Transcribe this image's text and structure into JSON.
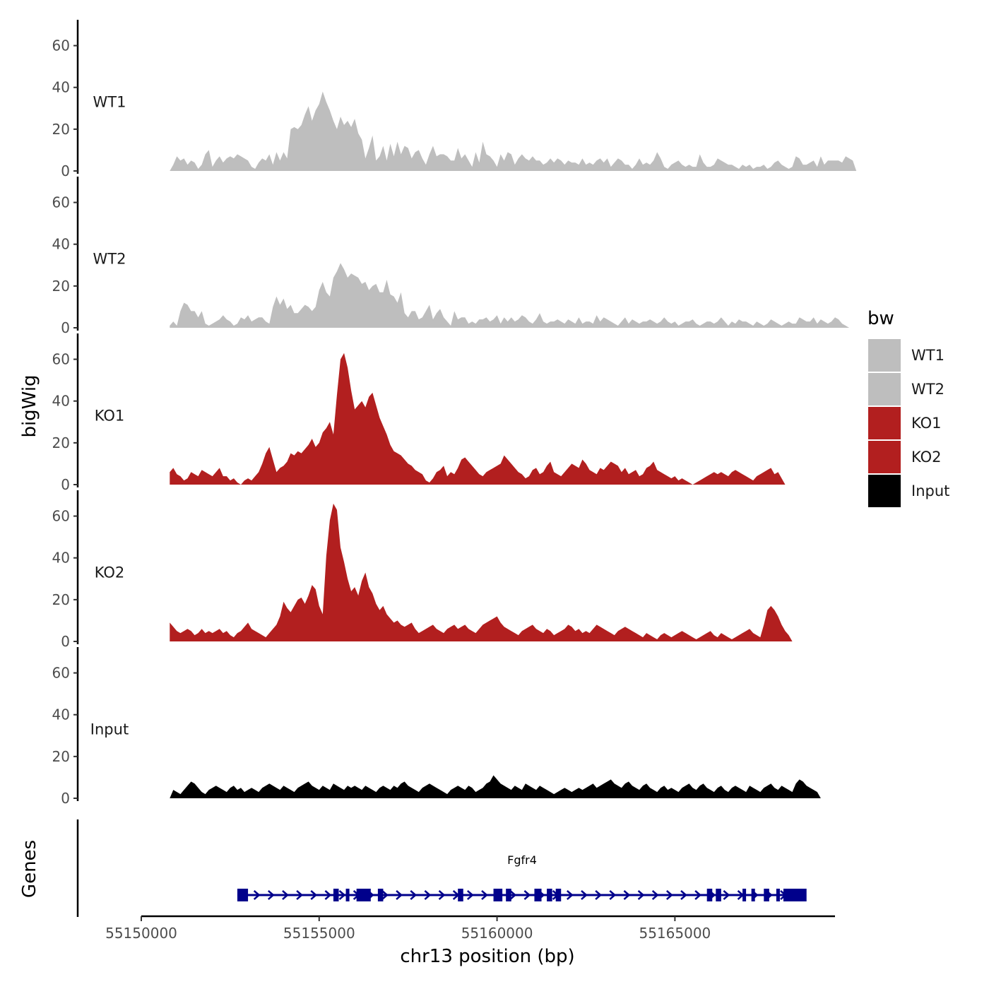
{
  "chart_data": {
    "type": "area",
    "title": "",
    "xlabel": "chr13 position (bp)",
    "ylabel": "bigWig",
    "genes_label": "Genes",
    "xlim": [
      55150000,
      55169500
    ],
    "ylim": [
      0,
      70
    ],
    "x_ticks": [
      55150000,
      55155000,
      55160000,
      55165000
    ],
    "x_tick_labels": [
      "55150000",
      "55155000",
      "55160000",
      "55165000"
    ],
    "y_ticks": [
      0,
      20,
      40,
      60
    ],
    "y_tick_labels": [
      "0",
      "20",
      "40",
      "60"
    ],
    "x_start": 55150800,
    "x_step": 100,
    "legend": {
      "title": "bw",
      "entries": [
        {
          "name": "WT1",
          "color": "#bebebe"
        },
        {
          "name": "WT2",
          "color": "#bebebe"
        },
        {
          "name": "KO1",
          "color": "#b21f1f"
        },
        {
          "name": "KO2",
          "color": "#b21f1f"
        },
        {
          "name": "Input",
          "color": "#000000"
        }
      ]
    },
    "series": [
      {
        "name": "WT1",
        "color": "#bebebe",
        "values": [
          0,
          3,
          7,
          5,
          6,
          3,
          5,
          4,
          1,
          3,
          8,
          10,
          2,
          5,
          7,
          4,
          6,
          7,
          6,
          8,
          7,
          6,
          5,
          2,
          1,
          4,
          6,
          5,
          8,
          3,
          9,
          5,
          9,
          6,
          20,
          21,
          20,
          22,
          27,
          31,
          24,
          29,
          32,
          38,
          33,
          29,
          24,
          20,
          26,
          22,
          24,
          21,
          25,
          18,
          15,
          6,
          11,
          17,
          5,
          7,
          12,
          5,
          13,
          7,
          14,
          8,
          12,
          11,
          6,
          9,
          10,
          6,
          3,
          8,
          12,
          7,
          8,
          8,
          7,
          5,
          5,
          11,
          6,
          8,
          5,
          2,
          9,
          4,
          14,
          8,
          7,
          5,
          2,
          8,
          5,
          9,
          8,
          3,
          6,
          8,
          6,
          5,
          7,
          5,
          5,
          3,
          4,
          6,
          4,
          6,
          5,
          3,
          5,
          4,
          4,
          3,
          6,
          3,
          4,
          3,
          5,
          6,
          4,
          6,
          2,
          4,
          6,
          5,
          3,
          3,
          1,
          3,
          6,
          3,
          4,
          3,
          5,
          9,
          6,
          2,
          1,
          3,
          4,
          5,
          3,
          2,
          3,
          2,
          2,
          8,
          4,
          2,
          2,
          3,
          6,
          5,
          4,
          3,
          3,
          2,
          1,
          3,
          2,
          3,
          1,
          2,
          2,
          3,
          1,
          2,
          4,
          5,
          3,
          2,
          1,
          2,
          7,
          6,
          3,
          3,
          4,
          5,
          2,
          7,
          3,
          5,
          5,
          5,
          5,
          4,
          7,
          6,
          5,
          0
        ]
      },
      {
        "name": "WT2",
        "color": "#bebebe",
        "values": [
          1,
          3,
          1,
          8,
          12,
          11,
          8,
          8,
          5,
          8,
          2,
          1,
          2,
          3,
          4,
          6,
          4,
          3,
          1,
          2,
          5,
          4,
          6,
          3,
          4,
          5,
          5,
          3,
          2,
          10,
          15,
          11,
          14,
          9,
          11,
          7,
          7,
          9,
          11,
          10,
          8,
          10,
          18,
          22,
          17,
          15,
          24,
          27,
          31,
          28,
          24,
          26,
          25,
          24,
          21,
          22,
          18,
          20,
          21,
          17,
          17,
          23,
          16,
          15,
          12,
          17,
          7,
          5,
          8,
          8,
          4,
          5,
          8,
          11,
          4,
          7,
          9,
          5,
          3,
          1,
          8,
          4,
          5,
          5,
          2,
          3,
          2,
          4,
          4,
          5,
          3,
          4,
          6,
          2,
          5,
          3,
          5,
          3,
          4,
          6,
          5,
          3,
          2,
          4,
          7,
          3,
          2,
          3,
          3,
          4,
          3,
          2,
          4,
          3,
          2,
          5,
          2,
          3,
          3,
          2,
          6,
          3,
          5,
          4,
          3,
          2,
          1,
          3,
          5,
          2,
          4,
          3,
          2,
          3,
          3,
          4,
          3,
          2,
          3,
          5,
          3,
          2,
          3,
          1,
          2,
          3,
          3,
          4,
          2,
          1,
          2,
          3,
          3,
          2,
          3,
          5,
          3,
          1,
          3,
          2,
          4,
          3,
          3,
          2,
          1,
          3,
          2,
          1,
          2,
          4,
          3,
          2,
          1,
          2,
          3,
          2,
          2,
          5,
          4,
          3,
          3,
          5,
          2,
          4,
          3,
          2,
          3,
          5,
          4,
          2,
          1,
          0
        ]
      },
      {
        "name": "KO1",
        "color": "#b21f1f",
        "values": [
          6,
          8,
          5,
          4,
          2,
          3,
          6,
          5,
          4,
          7,
          6,
          5,
          4,
          6,
          8,
          4,
          4,
          2,
          3,
          1,
          0,
          2,
          3,
          2,
          4,
          6,
          10,
          15,
          18,
          12,
          6,
          8,
          9,
          11,
          15,
          14,
          16,
          15,
          17,
          19,
          22,
          18,
          20,
          25,
          27,
          30,
          24,
          43,
          60,
          63,
          56,
          45,
          36,
          38,
          40,
          37,
          42,
          44,
          38,
          32,
          28,
          24,
          19,
          16,
          15,
          14,
          12,
          10,
          9,
          7,
          6,
          5,
          2,
          1,
          3,
          6,
          7,
          9,
          4,
          6,
          5,
          8,
          12,
          13,
          11,
          9,
          7,
          5,
          4,
          6,
          7,
          8,
          9,
          10,
          14,
          12,
          10,
          8,
          6,
          5,
          3,
          4,
          7,
          8,
          5,
          6,
          9,
          11,
          6,
          5,
          4,
          6,
          8,
          10,
          9,
          8,
          12,
          10,
          7,
          6,
          5,
          8,
          7,
          9,
          11,
          10,
          9,
          6,
          8,
          5,
          6,
          7,
          4,
          5,
          8,
          9,
          11,
          7,
          6,
          5,
          4,
          3,
          4,
          2,
          3,
          2,
          1,
          0,
          1,
          2,
          3,
          4,
          5,
          6,
          5,
          6,
          5,
          4,
          6,
          7,
          6,
          5,
          4,
          3,
          2,
          4,
          5,
          6,
          7,
          8,
          5,
          6,
          3,
          0
        ]
      },
      {
        "name": "KO2",
        "color": "#b21f1f",
        "values": [
          9,
          7,
          5,
          4,
          5,
          6,
          5,
          3,
          4,
          6,
          4,
          5,
          4,
          5,
          6,
          4,
          5,
          3,
          2,
          4,
          5,
          7,
          9,
          6,
          5,
          4,
          3,
          2,
          4,
          6,
          8,
          12,
          19,
          16,
          14,
          17,
          20,
          21,
          18,
          22,
          27,
          25,
          17,
          13,
          41,
          58,
          66,
          63,
          45,
          38,
          30,
          24,
          26,
          22,
          29,
          33,
          26,
          23,
          18,
          15,
          17,
          13,
          11,
          9,
          10,
          8,
          7,
          8,
          9,
          6,
          4,
          5,
          6,
          7,
          8,
          6,
          5,
          4,
          6,
          7,
          8,
          6,
          7,
          8,
          6,
          5,
          4,
          6,
          8,
          9,
          10,
          11,
          12,
          9,
          7,
          6,
          5,
          4,
          3,
          5,
          6,
          7,
          8,
          6,
          5,
          4,
          6,
          5,
          3,
          4,
          5,
          6,
          8,
          7,
          5,
          6,
          4,
          5,
          4,
          6,
          8,
          7,
          6,
          5,
          4,
          3,
          5,
          6,
          7,
          6,
          5,
          4,
          3,
          2,
          4,
          3,
          2,
          1,
          3,
          4,
          3,
          2,
          3,
          4,
          5,
          4,
          3,
          2,
          1,
          2,
          3,
          4,
          5,
          3,
          2,
          4,
          3,
          2,
          1,
          2,
          3,
          4,
          5,
          6,
          4,
          3,
          2,
          8,
          15,
          17,
          15,
          12,
          8,
          5,
          3,
          0
        ]
      },
      {
        "name": "Input",
        "color": "#000000",
        "values": [
          0,
          4,
          3,
          2,
          4,
          6,
          8,
          7,
          5,
          3,
          2,
          4,
          5,
          6,
          5,
          4,
          3,
          5,
          6,
          4,
          5,
          3,
          4,
          5,
          4,
          3,
          5,
          6,
          7,
          6,
          5,
          4,
          6,
          5,
          4,
          3,
          5,
          6,
          7,
          8,
          6,
          5,
          4,
          6,
          5,
          4,
          7,
          6,
          5,
          4,
          6,
          5,
          6,
          5,
          4,
          6,
          5,
          4,
          3,
          5,
          6,
          5,
          4,
          6,
          5,
          7,
          8,
          6,
          5,
          4,
          3,
          5,
          6,
          7,
          6,
          5,
          4,
          3,
          2,
          4,
          5,
          6,
          5,
          4,
          6,
          5,
          3,
          4,
          5,
          7,
          8,
          11,
          9,
          7,
          6,
          5,
          4,
          6,
          5,
          4,
          7,
          6,
          5,
          4,
          6,
          5,
          4,
          3,
          2,
          3,
          4,
          5,
          4,
          3,
          4,
          5,
          4,
          5,
          6,
          7,
          5,
          6,
          7,
          8,
          9,
          7,
          6,
          5,
          7,
          8,
          6,
          5,
          4,
          6,
          7,
          5,
          4,
          3,
          5,
          6,
          4,
          5,
          4,
          3,
          5,
          6,
          7,
          5,
          4,
          6,
          7,
          5,
          4,
          3,
          5,
          6,
          4,
          3,
          5,
          6,
          5,
          4,
          3,
          6,
          5,
          4,
          3,
          5,
          6,
          7,
          5,
          4,
          6,
          5,
          4,
          3,
          7,
          9,
          8,
          6,
          5,
          4,
          3,
          0
        ]
      }
    ],
    "gene_track": {
      "gene": "Fgfr4",
      "start": 55152700,
      "end": 55168650,
      "color": "#00008b",
      "exons": [
        [
          55152700,
          55153000
        ],
        [
          55155400,
          55155550
        ],
        [
          55155750,
          55155850
        ],
        [
          55156050,
          55156450
        ],
        [
          55156650,
          55156800
        ],
        [
          55158900,
          55159050
        ],
        [
          55159900,
          55160150
        ],
        [
          55160250,
          55160400
        ],
        [
          55161050,
          55161250
        ],
        [
          55161400,
          55161550
        ],
        [
          55161650,
          55161800
        ],
        [
          55165900,
          55166050
        ],
        [
          55166150,
          55166300
        ],
        [
          55166900,
          55167000
        ],
        [
          55167150,
          55167250
        ],
        [
          55167500,
          55167650
        ],
        [
          55167850,
          55167950
        ],
        [
          55168050,
          55168700
        ]
      ]
    }
  }
}
